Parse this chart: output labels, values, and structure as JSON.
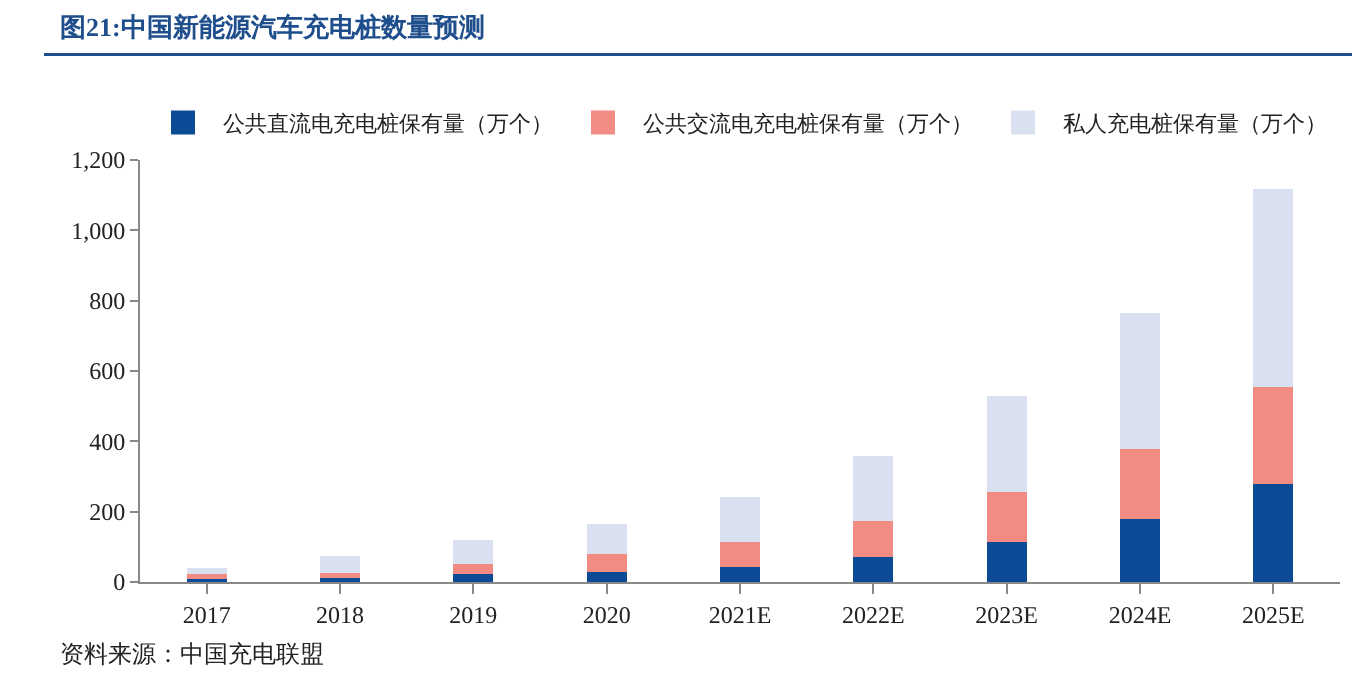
{
  "chart_data": {
    "type": "bar",
    "stacked": true,
    "title": "图21:中国新能源汽车充电桩数量预测",
    "categories": [
      "2017",
      "2018",
      "2019",
      "2020",
      "2021E",
      "2022E",
      "2023E",
      "2024E",
      "2025E"
    ],
    "series": [
      {
        "name": "公共直流电充电桩保有量（万个）",
        "color": "#0b4a94",
        "values": [
          8,
          10,
          22,
          28,
          44,
          71,
          115,
          178,
          278
        ]
      },
      {
        "name": "公共交流电充电桩保有量（万个）",
        "color": "#f28b82",
        "values": [
          16,
          16,
          28,
          51,
          69,
          102,
          141,
          199,
          277
        ]
      },
      {
        "name": "私人充电桩保有量（万个）",
        "color": "#d9e1f0",
        "values": [
          16,
          49,
          69,
          87,
          129,
          184,
          272,
          388,
          562
        ]
      }
    ],
    "ylim": [
      0,
      1200
    ],
    "yticks": [
      0,
      200,
      400,
      600,
      800,
      {
        "value": 1000,
        "label": "1,000"
      },
      {
        "value": 1200,
        "label": "1,200"
      }
    ],
    "grid": false,
    "legend": "top",
    "annotations": [
      "资料来源：中国充电联盟"
    ]
  }
}
